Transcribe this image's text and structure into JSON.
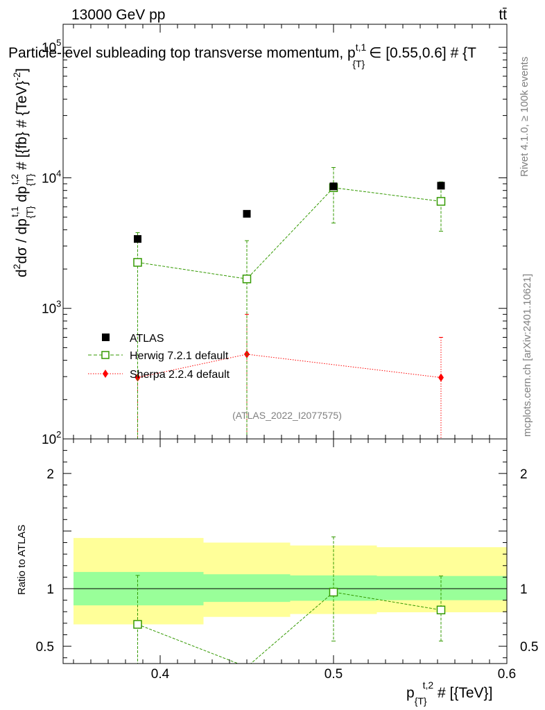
{
  "header": {
    "energy_label": "13000 GeV pp",
    "process_label": "tt̄"
  },
  "side_labels": {
    "rivet": "Rivet 4.1.0, ≥ 100k events",
    "mcplots": "mcplots.cern.ch [arXiv:2401.10621]"
  },
  "chart_data": {
    "type": "scatter",
    "title": "Particle-level subleading top transverse momentum, p",
    "title_sub": "{T}",
    "title_sup": "t,1",
    "title_tail": " ∈ [0.55,0.6] # {T",
    "ylabel": "d²σ / dp{T}t,1 dp{T}t,2 # [{fb} # {TeV}-2]",
    "ylabel_parts": {
      "d2sigma": "dσ / dp",
      "sub": "{T}",
      "sup1": "t,1",
      "mid": " dp",
      "sup2": "t,2",
      "tail": " # [{fb} # {TeV}",
      "exp": "-2",
      "close": "]"
    },
    "xlabel": "p{T}t,2 # [{TeV}]",
    "xlabel_parts": {
      "p": "p",
      "sub": "{T}",
      "sup": "t,2",
      "tail": " # [{TeV}]"
    },
    "ratio_ylabel": "Ratio to ATLAS",
    "analysis_id": "(ATLAS_2022_I2077575)",
    "xlim": [
      0.344,
      0.6
    ],
    "ylim_main": [
      100,
      150000
    ],
    "ylim_ratio": [
      0.35,
      2.3
    ],
    "x_ticks": [
      0.4,
      0.5,
      0.6
    ],
    "x_tick_labels": [
      "0.4",
      "0.5",
      "0.6"
    ],
    "y_ticks_main": [
      100,
      1000,
      10000,
      100000
    ],
    "y_tick_labels_main": {
      "base": "10",
      "exps": [
        "2",
        "3",
        "4",
        "5"
      ]
    },
    "y_ticks_ratio": [
      0.5,
      1,
      2
    ],
    "y_tick_labels_ratio": [
      "0.5",
      "1",
      "2"
    ],
    "legend_position": "lower-left",
    "series": [
      {
        "name": "ATLAS",
        "marker": "square-filled",
        "color": "#000000",
        "x": [
          0.387,
          0.45,
          0.5,
          0.562
        ],
        "y": [
          3400,
          5300,
          8600,
          8700
        ],
        "yerr_low": [
          150,
          200,
          350,
          350
        ],
        "yerr_high": [
          150,
          200,
          350,
          350
        ]
      },
      {
        "name": "Herwig 7.2.1 default",
        "marker": "square-open",
        "line": "dashed",
        "color": "#339900",
        "x": [
          0.387,
          0.45,
          0.5,
          0.562
        ],
        "y": [
          2250,
          1680,
          8400,
          6600
        ],
        "y_low": [
          100,
          100,
          4500,
          3900
        ],
        "y_high": [
          3800,
          3300,
          12000,
          9300
        ]
      },
      {
        "name": "Sherpa 2.2.4 default",
        "marker": "diamond-filled",
        "line": "dotted",
        "color": "#ff0000",
        "x": [
          0.387,
          0.45,
          0.562
        ],
        "y": [
          295,
          445,
          295
        ],
        "y_low": [
          100,
          100,
          100
        ],
        "y_high": [
          295,
          900,
          600
        ]
      }
    ],
    "ratio": {
      "reference": 1.0,
      "bins": [
        {
          "x0": 0.35,
          "x1": 0.425,
          "inner": [
            0.855,
            1.145
          ],
          "outer": [
            0.69,
            1.44
          ]
        },
        {
          "x0": 0.425,
          "x1": 0.475,
          "inner": [
            0.885,
            1.125
          ],
          "outer": [
            0.755,
            1.4
          ]
        },
        {
          "x0": 0.475,
          "x1": 0.525,
          "inner": [
            0.895,
            1.115
          ],
          "outer": [
            0.78,
            1.375
          ]
        },
        {
          "x0": 0.525,
          "x1": 0.6,
          "inner": [
            0.9,
            1.11
          ],
          "outer": [
            0.795,
            1.36
          ]
        }
      ],
      "herwig": {
        "x": [
          0.387,
          0.45,
          0.5,
          0.562
        ],
        "y": [
          0.69,
          0.32,
          0.97,
          0.815
        ],
        "y_low": [
          0.35,
          null,
          0.545,
          0.545
        ],
        "y_high": [
          1.115,
          null,
          1.45,
          1.11
        ]
      }
    }
  }
}
